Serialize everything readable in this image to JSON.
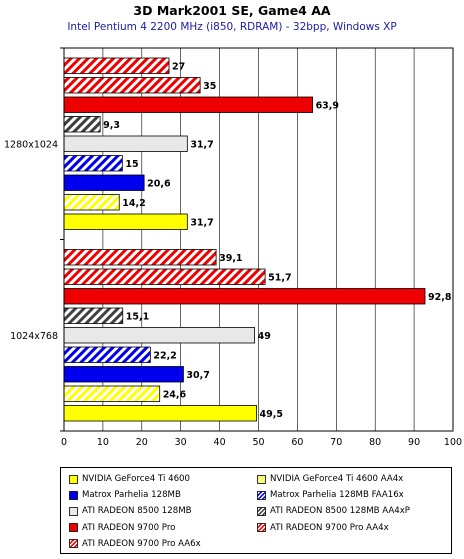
{
  "chart_data": {
    "type": "bar",
    "orientation": "horizontal",
    "title": "3D Mark2001 SE,  Game4 AA",
    "subtitle": "Intel Pentium 4 2200 MHz (i850, RDRAM) - 32bpp, Windows XP",
    "categories": [
      "1280x1024",
      "1024x768"
    ],
    "xlim": [
      0,
      100
    ],
    "xticks": [
      0,
      10,
      20,
      30,
      40,
      50,
      60,
      70,
      80,
      90,
      100
    ],
    "grid": true,
    "legend_position": "bottom",
    "series": [
      {
        "name": "NVIDIA GeForce4 Ti 4600",
        "values": [
          31.7,
          49.5
        ],
        "labels": [
          "31,7",
          "49,5"
        ],
        "color": "#ffff00",
        "pattern": "solid"
      },
      {
        "name": "NVIDIA GeForce4 Ti 4600 AA4x",
        "values": [
          14.2,
          24.6
        ],
        "labels": [
          "14,2",
          "24,6"
        ],
        "color": "#ffff00",
        "pattern": "hatch"
      },
      {
        "name": "Matrox Parhelia 128MB",
        "values": [
          20.6,
          30.7
        ],
        "labels": [
          "20,6",
          "30,7"
        ],
        "color": "#0000ee",
        "pattern": "solid"
      },
      {
        "name": "Matrox Parhelia 128MB FAA16x",
        "values": [
          15,
          22.2
        ],
        "labels": [
          "15",
          "22,2"
        ],
        "color": "#0000ee",
        "pattern": "hatch"
      },
      {
        "name": "ATI RADEON 8500 128MB",
        "values": [
          31.7,
          49
        ],
        "labels": [
          "31,7",
          "49"
        ],
        "color": "#e8e8e8",
        "pattern": "solid"
      },
      {
        "name": "ATI RADEON 8500 128MB AA4xP",
        "values": [
          9.3,
          15.1
        ],
        "labels": [
          "9,3",
          "15,1"
        ],
        "color": "#404040",
        "pattern": "hatch"
      },
      {
        "name": "ATI RADEON 9700 Pro",
        "values": [
          63.9,
          92.8
        ],
        "labels": [
          "63,9",
          "92,8"
        ],
        "color": "#ee0000",
        "pattern": "solid"
      },
      {
        "name": "ATI RADEON 9700 Pro AA4x",
        "values": [
          35,
          51.7
        ],
        "labels": [
          "35",
          "51,7"
        ],
        "color": "#ee0000",
        "pattern": "hatch"
      },
      {
        "name": "ATI RADEON 9700 Pro AA6x",
        "values": [
          27,
          39.1
        ],
        "labels": [
          "27",
          "39,1"
        ],
        "color": "#ee0000",
        "pattern": "hatch"
      }
    ]
  }
}
